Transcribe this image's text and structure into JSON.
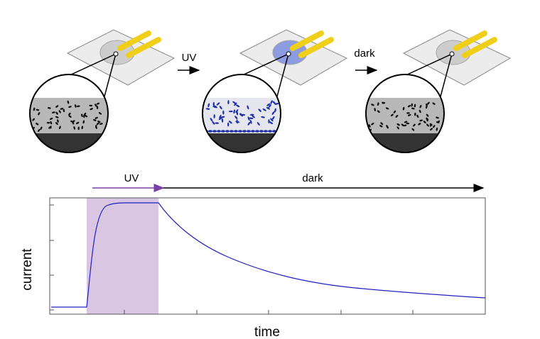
{
  "diagram": {
    "step_labels": [
      "UV",
      "dark"
    ]
  },
  "plot": {
    "phase_labels": [
      "UV",
      "dark"
    ],
    "ylabel": "current",
    "xlabel": "time"
  }
}
